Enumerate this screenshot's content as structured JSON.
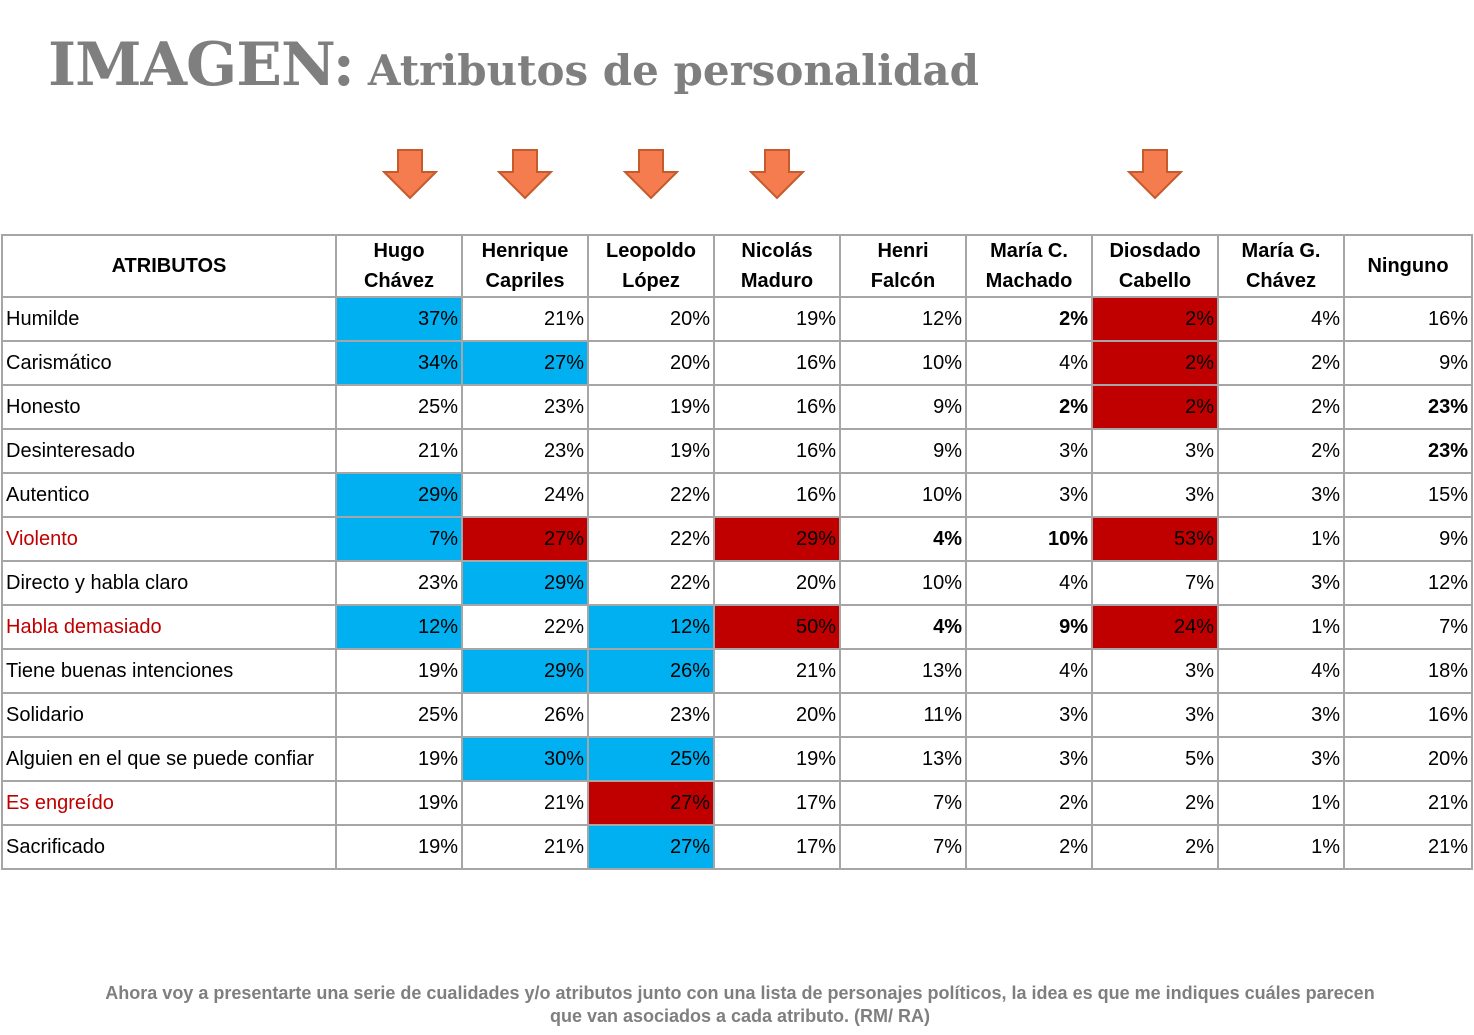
{
  "header": {
    "title_main": "IMAGEN:",
    "title_sub": "Atributos de personalidad"
  },
  "arrow_color": "#f47c4f",
  "arrow_columns": [
    0,
    1,
    2,
    3,
    6
  ],
  "colors": {
    "blue_highlight": "#00b0f0",
    "red_highlight": "#c00000",
    "negative_attribute_text": "#c00000"
  },
  "footnote": {
    "line1": "Ahora voy a presentarte una serie de cualidades y/o atributos junto con una lista de personajes políticos, la idea es que me indiques cuáles parecen",
    "line2": "que van asociados a cada atributo. (RM/ RA)"
  },
  "chart_data": {
    "type": "table",
    "row_header": "ATRIBUTOS",
    "columns": [
      {
        "line1": "Hugo",
        "line2": "Chávez"
      },
      {
        "line1": "Henrique",
        "line2": "Capriles"
      },
      {
        "line1": "Leopoldo",
        "line2": "López"
      },
      {
        "line1": "Nicolás",
        "line2": "Maduro"
      },
      {
        "line1": "Henri",
        "line2": "Falcón"
      },
      {
        "line1": "María C.",
        "line2": "Machado"
      },
      {
        "line1": "Diosdado",
        "line2": "Cabello"
      },
      {
        "line1": "María G.",
        "line2": "Chávez"
      },
      {
        "line1": "Ninguno",
        "line2": ""
      }
    ],
    "rows": [
      {
        "label": "Humilde",
        "negative": false,
        "values": [
          "37%",
          "21%",
          "20%",
          "19%",
          "12%",
          "2%",
          "2%",
          "4%",
          "16%"
        ],
        "hl": [
          "b",
          "",
          "",
          "",
          "",
          "",
          "r",
          "",
          ""
        ],
        "bold": [
          0,
          0,
          0,
          0,
          0,
          1,
          0,
          0,
          0
        ]
      },
      {
        "label": "Carismático",
        "negative": false,
        "values": [
          "34%",
          "27%",
          "20%",
          "16%",
          "10%",
          "4%",
          "2%",
          "2%",
          "9%"
        ],
        "hl": [
          "b",
          "b",
          "",
          "",
          "",
          "",
          "r",
          "",
          ""
        ],
        "bold": [
          0,
          0,
          0,
          0,
          0,
          0,
          0,
          0,
          0
        ]
      },
      {
        "label": "Honesto",
        "negative": false,
        "values": [
          "25%",
          "23%",
          "19%",
          "16%",
          "9%",
          "2%",
          "2%",
          "2%",
          "23%"
        ],
        "hl": [
          "",
          "",
          "",
          "",
          "",
          "",
          "r",
          "",
          ""
        ],
        "bold": [
          0,
          0,
          0,
          0,
          0,
          1,
          0,
          0,
          1
        ]
      },
      {
        "label": "Desinteresado",
        "negative": false,
        "values": [
          "21%",
          "23%",
          "19%",
          "16%",
          "9%",
          "3%",
          "3%",
          "2%",
          "23%"
        ],
        "hl": [
          "",
          "",
          "",
          "",
          "",
          "",
          "",
          "",
          ""
        ],
        "bold": [
          0,
          0,
          0,
          0,
          0,
          0,
          0,
          0,
          1
        ]
      },
      {
        "label": "Autentico",
        "negative": false,
        "values": [
          "29%",
          "24%",
          "22%",
          "16%",
          "10%",
          "3%",
          "3%",
          "3%",
          "15%"
        ],
        "hl": [
          "b",
          "",
          "",
          "",
          "",
          "",
          "",
          "",
          ""
        ],
        "bold": [
          0,
          0,
          0,
          0,
          0,
          0,
          0,
          0,
          0
        ]
      },
      {
        "label": "Violento",
        "negative": true,
        "values": [
          "7%",
          "27%",
          "22%",
          "29%",
          "4%",
          "10%",
          "53%",
          "1%",
          "9%"
        ],
        "hl": [
          "b",
          "r",
          "",
          "r",
          "",
          "",
          "r",
          "",
          ""
        ],
        "bold": [
          0,
          0,
          0,
          0,
          1,
          1,
          0,
          0,
          0
        ]
      },
      {
        "label": "Directo y habla claro",
        "negative": false,
        "values": [
          "23%",
          "29%",
          "22%",
          "20%",
          "10%",
          "4%",
          "7%",
          "3%",
          "12%"
        ],
        "hl": [
          "",
          "b",
          "",
          "",
          "",
          "",
          "",
          "",
          ""
        ],
        "bold": [
          0,
          0,
          0,
          0,
          0,
          0,
          0,
          0,
          0
        ]
      },
      {
        "label": "Habla demasiado",
        "negative": true,
        "values": [
          "12%",
          "22%",
          "12%",
          "50%",
          "4%",
          "9%",
          "24%",
          "1%",
          "7%"
        ],
        "hl": [
          "b",
          "",
          "b",
          "r",
          "",
          "",
          "r",
          "",
          ""
        ],
        "bold": [
          0,
          0,
          0,
          0,
          1,
          1,
          0,
          0,
          0
        ]
      },
      {
        "label": "Tiene buenas intenciones",
        "negative": false,
        "values": [
          "19%",
          "29%",
          "26%",
          "21%",
          "13%",
          "4%",
          "3%",
          "4%",
          "18%"
        ],
        "hl": [
          "",
          "b",
          "b",
          "",
          "",
          "",
          "",
          "",
          ""
        ],
        "bold": [
          0,
          0,
          0,
          0,
          0,
          0,
          0,
          0,
          0
        ]
      },
      {
        "label": "Solidario",
        "negative": false,
        "values": [
          "25%",
          "26%",
          "23%",
          "20%",
          "11%",
          "3%",
          "3%",
          "3%",
          "16%"
        ],
        "hl": [
          "",
          "",
          "",
          "",
          "",
          "",
          "",
          "",
          ""
        ],
        "bold": [
          0,
          0,
          0,
          0,
          0,
          0,
          0,
          0,
          0
        ]
      },
      {
        "label": "Alguien en el que se puede confiar",
        "negative": false,
        "values": [
          "19%",
          "30%",
          "25%",
          "19%",
          "13%",
          "3%",
          "5%",
          "3%",
          "20%"
        ],
        "hl": [
          "",
          "b",
          "b",
          "",
          "",
          "",
          "",
          "",
          ""
        ],
        "bold": [
          0,
          0,
          0,
          0,
          0,
          0,
          0,
          0,
          0
        ]
      },
      {
        "label": "Es engreído",
        "negative": true,
        "values": [
          "19%",
          "21%",
          "27%",
          "17%",
          "7%",
          "2%",
          "2%",
          "1%",
          "21%"
        ],
        "hl": [
          "",
          "",
          "r",
          "",
          "",
          "",
          "",
          "",
          ""
        ],
        "bold": [
          0,
          0,
          0,
          0,
          0,
          0,
          0,
          0,
          0
        ]
      },
      {
        "label": "Sacrificado",
        "negative": false,
        "values": [
          "19%",
          "21%",
          "27%",
          "17%",
          "7%",
          "2%",
          "2%",
          "1%",
          "21%"
        ],
        "hl": [
          "",
          "",
          "b",
          "",
          "",
          "",
          "",
          "",
          ""
        ],
        "bold": [
          0,
          0,
          0,
          0,
          0,
          0,
          0,
          0,
          0
        ]
      }
    ]
  }
}
